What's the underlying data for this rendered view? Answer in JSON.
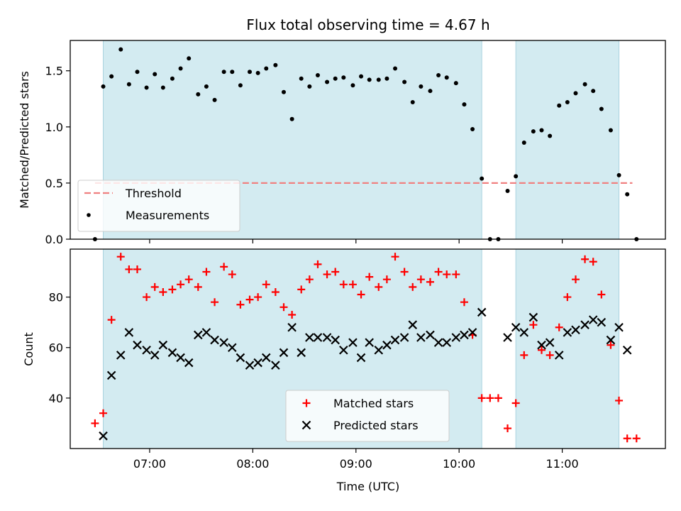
{
  "chart_data": {
    "title": "Flux total observing time = 4.67 h",
    "xlabel": "Time (UTC)",
    "x_unit": "hours UTC",
    "x_ticks": [
      {
        "value": 7.0,
        "label": "07:00"
      },
      {
        "value": 8.0,
        "label": "08:00"
      },
      {
        "value": 9.0,
        "label": "09:00"
      },
      {
        "value": 10.0,
        "label": "10:00"
      },
      {
        "value": 11.0,
        "label": "11:00"
      }
    ],
    "xlim": [
      6.23,
      12.0
    ],
    "shaded_intervals": [
      [
        6.55,
        10.22
      ],
      [
        10.55,
        11.55
      ]
    ],
    "shade_color": "#d3ebf1",
    "panels": [
      {
        "type": "scatter",
        "ylabel": "Matched/Predicted stars",
        "ylim": [
          0,
          1.77
        ],
        "y_ticks": [
          {
            "value": 0.0,
            "label": "0.0"
          },
          {
            "value": 0.5,
            "label": "0.5"
          },
          {
            "value": 1.0,
            "label": "1.0"
          },
          {
            "value": 1.5,
            "label": "1.5"
          }
        ],
        "threshold": {
          "name": "Threshold",
          "value": 0.5,
          "x_range": [
            6.47,
            11.68
          ],
          "color": "#f08080"
        },
        "legend_position": "lower-left",
        "series": [
          {
            "name": "Measurements",
            "marker": "dot",
            "color": "#000000",
            "x": [
              6.47,
              6.55,
              6.63,
              6.72,
              6.8,
              6.88,
              6.97,
              7.05,
              7.13,
              7.22,
              7.3,
              7.38,
              7.47,
              7.55,
              7.63,
              7.72,
              7.8,
              7.88,
              7.97,
              8.05,
              8.13,
              8.22,
              8.3,
              8.38,
              8.47,
              8.55,
              8.63,
              8.72,
              8.8,
              8.88,
              8.97,
              9.05,
              9.13,
              9.22,
              9.3,
              9.38,
              9.47,
              9.55,
              9.63,
              9.72,
              9.8,
              9.88,
              9.97,
              10.05,
              10.13,
              10.22,
              10.3,
              10.38,
              10.47,
              10.55,
              10.63,
              10.72,
              10.8,
              10.88,
              10.97,
              11.05,
              11.13,
              11.22,
              11.3,
              11.38,
              11.47,
              11.55,
              11.63,
              11.72
            ],
            "y": [
              0.0,
              1.36,
              1.45,
              1.69,
              1.38,
              1.49,
              1.35,
              1.47,
              1.35,
              1.43,
              1.52,
              1.61,
              1.29,
              1.36,
              1.24,
              1.49,
              1.49,
              1.37,
              1.49,
              1.48,
              1.52,
              1.55,
              1.31,
              1.07,
              1.43,
              1.36,
              1.46,
              1.4,
              1.43,
              1.44,
              1.37,
              1.45,
              1.42,
              1.42,
              1.43,
              1.52,
              1.4,
              1.22,
              1.36,
              1.32,
              1.46,
              1.44,
              1.39,
              1.2,
              0.98,
              0.54,
              0.0,
              0.0,
              0.43,
              0.56,
              0.86,
              0.96,
              0.97,
              0.92,
              1.19,
              1.22,
              1.3,
              1.38,
              1.32,
              1.16,
              0.97,
              0.57,
              0.4,
              0.0
            ]
          }
        ]
      },
      {
        "type": "scatter",
        "ylabel": "Count",
        "ylim": [
          20,
          99
        ],
        "y_ticks": [
          {
            "value": 40,
            "label": "40"
          },
          {
            "value": 60,
            "label": "60"
          },
          {
            "value": 80,
            "label": "80"
          }
        ],
        "legend_position": "lower-center",
        "series": [
          {
            "name": "Matched stars",
            "marker": "plus",
            "color": "#ff0000",
            "x": [
              6.47,
              6.55,
              6.63,
              6.72,
              6.8,
              6.88,
              6.97,
              7.05,
              7.13,
              7.22,
              7.3,
              7.38,
              7.47,
              7.55,
              7.63,
              7.72,
              7.8,
              7.88,
              7.97,
              8.05,
              8.13,
              8.22,
              8.3,
              8.38,
              8.47,
              8.55,
              8.63,
              8.72,
              8.8,
              8.88,
              8.97,
              9.05,
              9.13,
              9.22,
              9.3,
              9.38,
              9.47,
              9.55,
              9.63,
              9.72,
              9.8,
              9.88,
              9.97,
              10.05,
              10.13,
              10.22,
              10.3,
              10.38,
              10.47,
              10.55,
              10.63,
              10.72,
              10.8,
              10.88,
              10.97,
              11.05,
              11.13,
              11.22,
              11.3,
              11.38,
              11.47,
              11.55,
              11.63,
              11.72
            ],
            "y": [
              30,
              34,
              71,
              96,
              91,
              91,
              80,
              84,
              82,
              83,
              85,
              87,
              84,
              90,
              78,
              92,
              89,
              77,
              79,
              80,
              85,
              82,
              76,
              73,
              83,
              87,
              93,
              89,
              90,
              85,
              85,
              81,
              88,
              84,
              87,
              96,
              90,
              84,
              87,
              86,
              90,
              89,
              89,
              78,
              65,
              40,
              40,
              40,
              28,
              38,
              57,
              69,
              59,
              57,
              68,
              80,
              87,
              95,
              94,
              81,
              61,
              39,
              24,
              24
            ]
          },
          {
            "name": "Predicted stars",
            "marker": "x",
            "color": "#000000",
            "x": [
              6.55,
              6.63,
              6.72,
              6.8,
              6.88,
              6.97,
              7.05,
              7.13,
              7.22,
              7.3,
              7.38,
              7.47,
              7.55,
              7.63,
              7.72,
              7.8,
              7.88,
              7.97,
              8.05,
              8.13,
              8.22,
              8.3,
              8.38,
              8.47,
              8.55,
              8.63,
              8.72,
              8.8,
              8.88,
              8.97,
              9.05,
              9.13,
              9.22,
              9.3,
              9.38,
              9.47,
              9.55,
              9.63,
              9.72,
              9.8,
              9.88,
              9.97,
              10.05,
              10.13,
              10.22,
              10.47,
              10.55,
              10.63,
              10.72,
              10.8,
              10.88,
              10.97,
              11.05,
              11.13,
              11.22,
              11.3,
              11.38,
              11.47,
              11.55,
              11.63
            ],
            "y": [
              25,
              49,
              57,
              66,
              61,
              59,
              57,
              61,
              58,
              56,
              54,
              65,
              66,
              63,
              62,
              60,
              56,
              53,
              54,
              56,
              53,
              58,
              68,
              58,
              64,
              64,
              64,
              63,
              59,
              62,
              56,
              62,
              59,
              61,
              63,
              64,
              69,
              64,
              65,
              62,
              62,
              64,
              65,
              66,
              74,
              64,
              68,
              66,
              72,
              61,
              62,
              57,
              66,
              67,
              69,
              71,
              70,
              63,
              68,
              59
            ]
          }
        ]
      }
    ]
  }
}
